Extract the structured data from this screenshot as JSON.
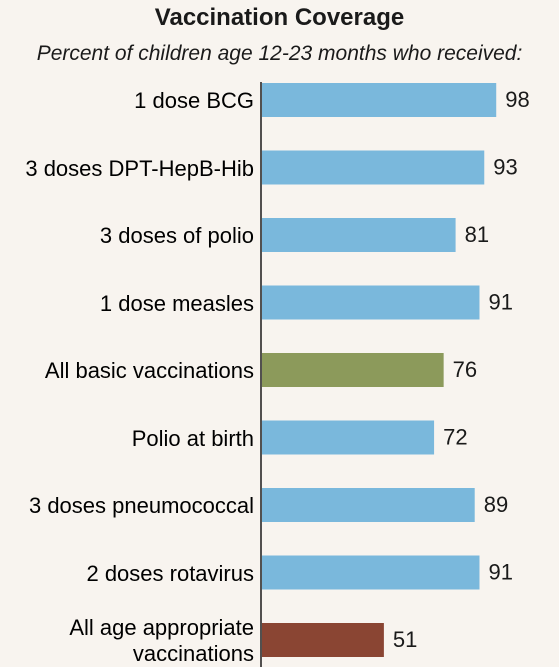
{
  "chart_data": {
    "type": "bar",
    "orientation": "horizontal",
    "title": "Vaccination Coverage",
    "subtitle": "Percent of children age 12-23 months who received:",
    "categories": [
      "1 dose BCG",
      "3 doses DPT-HepB-Hib",
      "3 doses of polio",
      "1 dose measles",
      "All basic vaccinations",
      "Polio at birth",
      "3 doses pneumococcal",
      "2 doses rotavirus",
      "All age appropriate vaccinations"
    ],
    "values": [
      98,
      93,
      81,
      91,
      76,
      72,
      89,
      91,
      51
    ],
    "colors": [
      "#7ab8dc",
      "#7ab8dc",
      "#7ab8dc",
      "#7ab8dc",
      "#8c9a5b",
      "#7ab8dc",
      "#7ab8dc",
      "#7ab8dc",
      "#8a4533"
    ],
    "xlim": [
      0,
      100
    ]
  }
}
